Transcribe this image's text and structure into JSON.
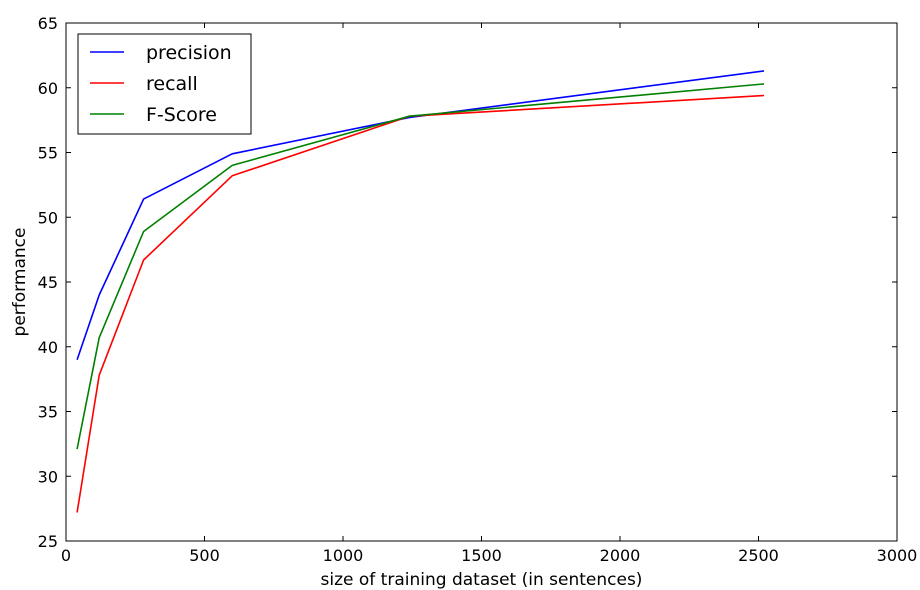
{
  "chart_data": {
    "type": "line",
    "xlabel": "size of training dataset (in sentences)",
    "ylabel": "performance",
    "xlim": [
      0,
      3000
    ],
    "ylim": [
      25,
      65
    ],
    "xticks": [
      0,
      500,
      1000,
      1500,
      2000,
      2500,
      3000
    ],
    "yticks": [
      25,
      30,
      35,
      40,
      45,
      50,
      55,
      60,
      65
    ],
    "x": [
      40,
      120,
      280,
      600,
      1240,
      2520
    ],
    "series": [
      {
        "name": "precision",
        "color": "#0000ff",
        "values": [
          39.0,
          44.0,
          51.4,
          54.9,
          57.7,
          61.3
        ]
      },
      {
        "name": "recall",
        "color": "#ff0000",
        "values": [
          27.2,
          37.8,
          46.7,
          53.2,
          57.8,
          59.4
        ]
      },
      {
        "name": "F-Score",
        "color": "#008000",
        "values": [
          32.1,
          40.7,
          48.9,
          54.0,
          57.8,
          60.3
        ]
      }
    ],
    "grid": false,
    "legend_position": "top-left"
  }
}
